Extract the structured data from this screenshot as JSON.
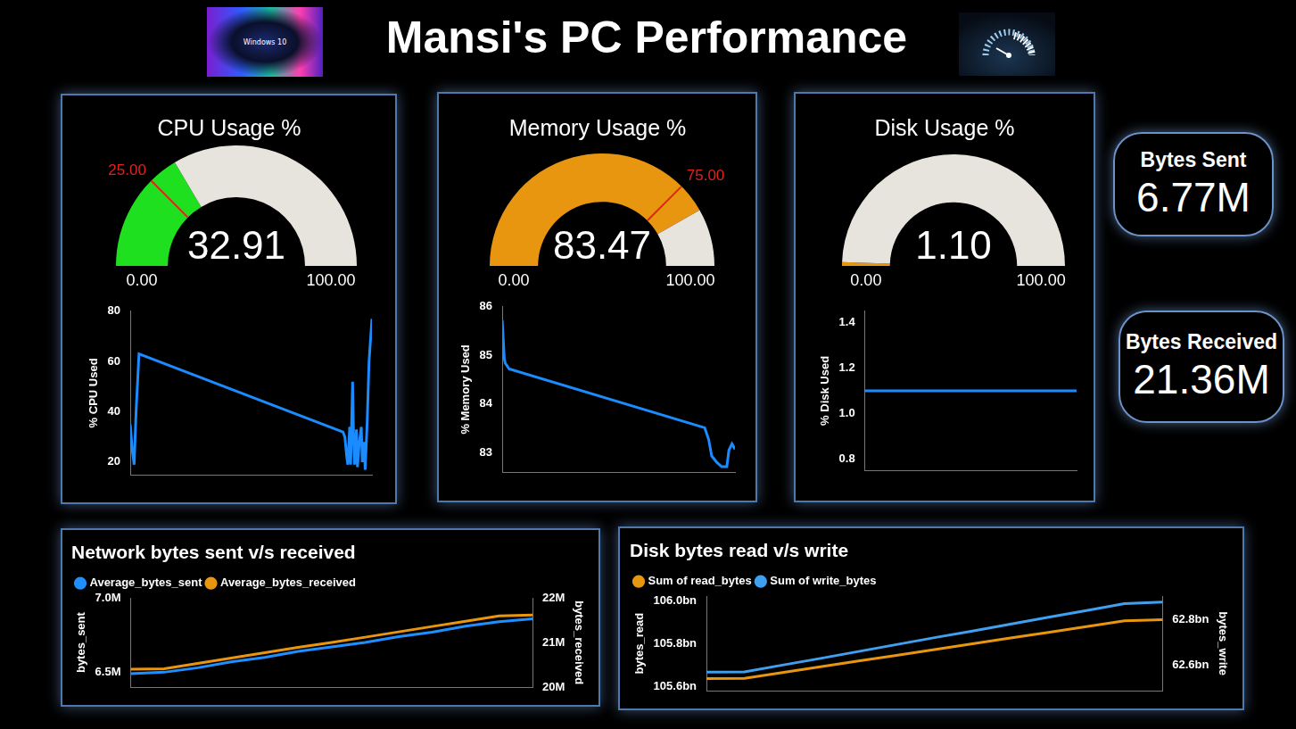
{
  "header": {
    "title": "Mansi's PC Performance",
    "logo_text": "Windows 10"
  },
  "cards": [
    {
      "label": "Bytes Sent",
      "value": "6.77M"
    },
    {
      "label": "Bytes Received",
      "value": "21.36M"
    }
  ],
  "chart_data": [
    {
      "type": "gauge",
      "title": "CPU Usage %",
      "values": [
        32.91
      ],
      "ylim": [
        0,
        100
      ],
      "yticks": [
        {
          "value": 0,
          "label": "0.00"
        },
        {
          "value": 100,
          "label": "100.00"
        }
      ],
      "target": {
        "value": 25,
        "label": "25.00"
      },
      "color": "#1fe01f"
    },
    {
      "type": "line",
      "ylabel": "% CPU Used",
      "x": [
        0,
        0.8,
        1.6,
        2.4,
        3.6,
        88,
        88.8,
        89.6,
        90,
        90.8,
        91.2,
        92,
        92.4,
        92.8,
        93.6,
        94,
        94.8,
        95.6,
        96,
        96.8,
        97.2,
        98,
        98.8,
        100
      ],
      "values": [
        35,
        25,
        19,
        40,
        63,
        32,
        30,
        22,
        19,
        34,
        19,
        52,
        30,
        19,
        33,
        18,
        28,
        34,
        20,
        28,
        17,
        35,
        60,
        77
      ],
      "xlim": [
        0,
        100
      ],
      "ylim": [
        15,
        80
      ],
      "yticks": [
        20,
        40,
        60,
        80
      ],
      "color": "#1a8cff",
      "grid": false,
      "tick_labels": "y"
    },
    {
      "type": "gauge",
      "title": "Memory Usage %",
      "values": [
        83.47
      ],
      "ylim": [
        0,
        100
      ],
      "yticks": [
        {
          "value": 0,
          "label": "0.00"
        },
        {
          "value": 100,
          "label": "100.00"
        }
      ],
      "target": {
        "value": 75,
        "label": "75.00"
      },
      "color": "#e8960f"
    },
    {
      "type": "line",
      "ylabel": "% Memory Used",
      "x": [
        0,
        0.9,
        1.3,
        3,
        87,
        88.7,
        90,
        92.2,
        94.3,
        96.5,
        97.4,
        98.7,
        100
      ],
      "values": [
        85.72,
        84.93,
        84.84,
        84.72,
        83.51,
        83.27,
        82.93,
        82.8,
        82.71,
        82.71,
        83.05,
        83.18,
        83.07
      ],
      "xlim": [
        0,
        100
      ],
      "ylim": [
        82.6,
        86
      ],
      "yticks": [
        83,
        84,
        85,
        86
      ],
      "color": "#1a8cff",
      "grid": false,
      "tick_labels": "y"
    },
    {
      "type": "gauge",
      "title": "Disk Usage %",
      "values": [
        1.1
      ],
      "value_labels": [
        "1.10"
      ],
      "ylim": [
        0,
        100
      ],
      "yticks": [
        {
          "value": 0,
          "label": "0.00"
        },
        {
          "value": 100,
          "label": "100.00"
        }
      ],
      "color": "#e8960f"
    },
    {
      "type": "line",
      "ylabel": "% Disk Used",
      "x": [
        0,
        100
      ],
      "values": [
        1.1,
        1.1
      ],
      "xlim": [
        0,
        100
      ],
      "ylim": [
        0.75,
        1.45
      ],
      "yticks": [
        0.8,
        {
          "value": 1,
          "label": "1.0"
        },
        1.2,
        1.4
      ],
      "color": "#1a8cff",
      "grid": false,
      "tick_labels": "y"
    },
    {
      "type": "line",
      "title": "Network bytes sent v/s received",
      "categories": [
        null,
        null,
        null,
        null,
        null,
        null,
        null,
        null,
        null,
        null,
        null,
        null,
        null
      ],
      "series": [
        {
          "name": "Average_bytes_sent",
          "color": "#1f8fff",
          "values": [
            6490000,
            6500000,
            6530000,
            6570000,
            6600000,
            6640000,
            6670000,
            6700000,
            6740000,
            6770000,
            6810000,
            6840000,
            6860000
          ]
        },
        {
          "name": "Average_bytes_received",
          "color": "#e8960f",
          "axis": "y2",
          "values": [
            20400000,
            20410000,
            20530000,
            20650000,
            20770000,
            20890000,
            21000000,
            21120000,
            21240000,
            21360000,
            21480000,
            21600000,
            21620000
          ]
        }
      ],
      "ylabel": "bytes_sent",
      "y2label": "bytes_received",
      "ylim": [
        6400000,
        7000000
      ],
      "yticks": [
        {
          "value": 6500000,
          "label": "6.5M"
        },
        {
          "value": 7000000,
          "label": "7.0M"
        }
      ],
      "y2lim": [
        20000000,
        22000000
      ],
      "y2ticks": [
        {
          "value": 20000000,
          "label": "20M"
        },
        {
          "value": 21000000,
          "label": "21M"
        },
        {
          "value": 22000000,
          "label": "22M"
        }
      ],
      "legend": "top-left",
      "grid": false,
      "tick_labels": "y"
    },
    {
      "type": "line",
      "title": "Disk bytes read v/s write",
      "categories": [
        null,
        null,
        null,
        null,
        null,
        null,
        null,
        null,
        null,
        null,
        null,
        null,
        null
      ],
      "series": [
        {
          "name": "Sum of read_bytes",
          "color": "#e8960f",
          "values": [
            105636000000,
            105637000000,
            105664000000,
            105691000000,
            105718000000,
            105744000000,
            105771000000,
            105798000000,
            105825000000,
            105851000000,
            105878000000,
            105905000000,
            105911000000
          ]
        },
        {
          "name": "Sum of write_bytes",
          "color": "#3fa0f0",
          "axis": "y2",
          "values": [
            62570000000,
            62571000000,
            62601000000,
            62630000000,
            62660000000,
            62690000000,
            62720000000,
            62749000000,
            62779000000,
            62809000000,
            62838000000,
            62868000000,
            62875000000
          ]
        }
      ],
      "ylabel": "bytes_read",
      "y2label": "bytes_write",
      "ylim": [
        105580000000,
        106020000000
      ],
      "yticks": [
        {
          "value": 105600000000,
          "label": "105.6bn"
        },
        {
          "value": 105800000000,
          "label": "105.8bn"
        },
        {
          "value": 106000000000,
          "label": "106.0bn"
        }
      ],
      "y2lim": [
        62490000000,
        62900000000
      ],
      "y2ticks": [
        {
          "value": 62600000000,
          "label": "62.6bn"
        },
        {
          "value": 62800000000,
          "label": "62.8bn"
        }
      ],
      "legend": "top-left",
      "grid": false,
      "tick_labels": "y"
    }
  ]
}
